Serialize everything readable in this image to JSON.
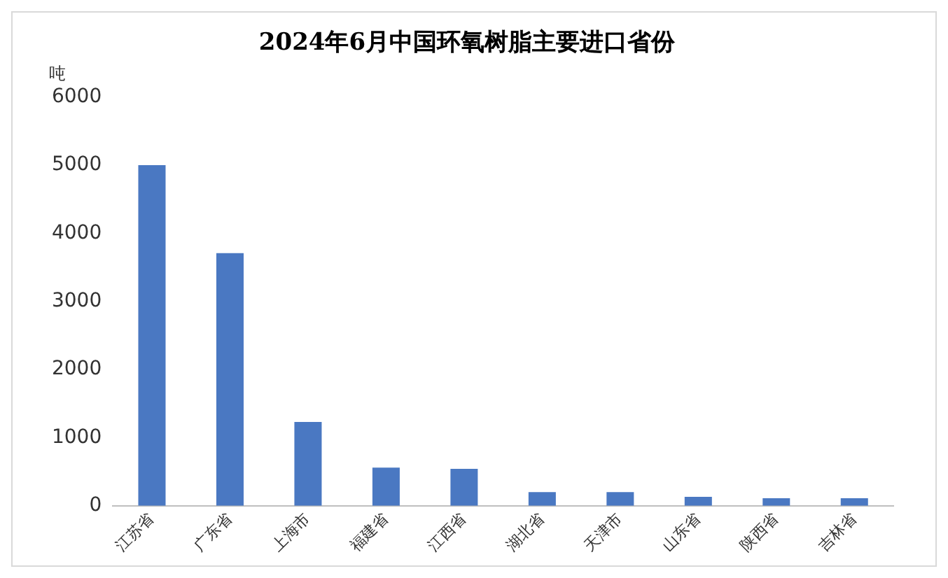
{
  "chart_data": {
    "type": "bar",
    "title": "2024年6月中国环氧树脂主要进口省份",
    "ylabel": "吨",
    "categories": [
      "江苏省",
      "广东省",
      "上海市",
      "福建省",
      "江西省",
      "湖北省",
      "天津市",
      "山东省",
      "陕西省",
      "吉林省"
    ],
    "values": [
      5000,
      3710,
      1230,
      560,
      540,
      200,
      200,
      130,
      110,
      110
    ],
    "color": "#4a78c2",
    "ylim": [
      0,
      6000
    ],
    "yticks": [
      0,
      1000,
      2000,
      3000,
      4000,
      5000,
      6000
    ],
    "grid": false
  }
}
